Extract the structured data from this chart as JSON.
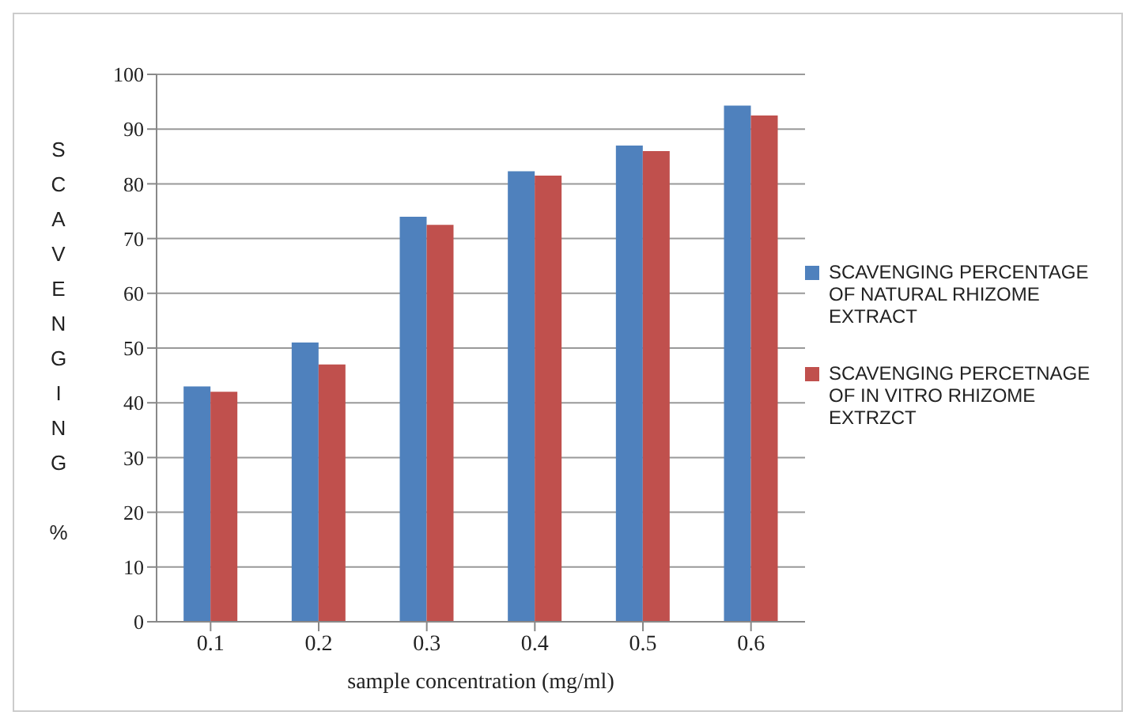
{
  "chart_data": {
    "type": "bar",
    "xlabel": "sample concentration (mg/ml)",
    "ylabel": "SCAVENGING %",
    "categories": [
      "0.1",
      "0.2",
      "0.3",
      "0.4",
      "0.5",
      "0.6"
    ],
    "series": [
      {
        "name": "SCAVENGING PERCENTAGE OF NATURAL RHIZOME EXTRACT",
        "color": "#4f81bd",
        "values": [
          43,
          51,
          74,
          82.3,
          87,
          94.3
        ]
      },
      {
        "name": "SCAVENGING PERCETNAGE OF IN VITRO RHIZOME EXTRZCT",
        "color": "#c0504d",
        "values": [
          42,
          47,
          72.5,
          81.5,
          86,
          92.5
        ]
      }
    ],
    "ylim": [
      0,
      100
    ],
    "yticks": [
      0,
      10,
      20,
      30,
      40,
      50,
      60,
      70,
      80,
      90,
      100
    ],
    "grid": "y",
    "legend": "right"
  }
}
